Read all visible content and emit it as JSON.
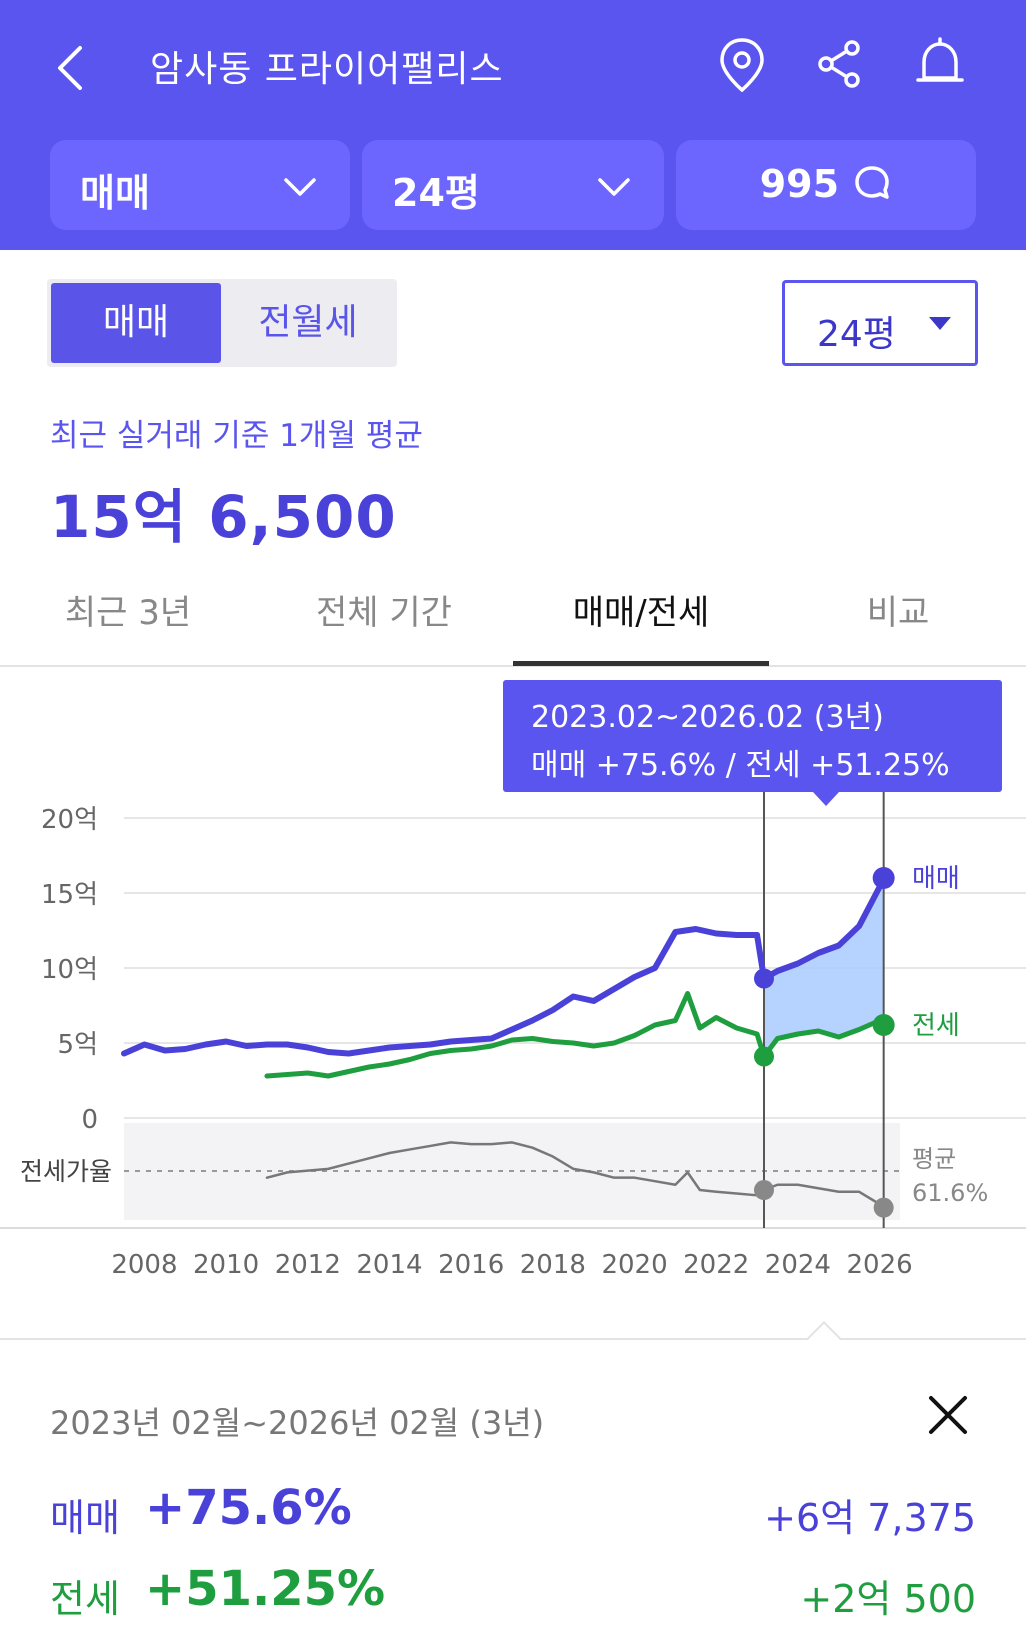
{
  "header": {
    "title": "암사동 프라이어팰리스",
    "filters": [
      {
        "label": "매매"
      },
      {
        "label": "24평"
      },
      {
        "label": "995"
      }
    ]
  },
  "segment": {
    "options": [
      "매매",
      "전월세"
    ],
    "selected": "매매"
  },
  "area_select": {
    "label": "24평"
  },
  "summary_top": {
    "caption": "최근 실거래 기준 1개월 평균",
    "price": "15억 6,500"
  },
  "tabs": [
    {
      "label": "최근 3년"
    },
    {
      "label": "전체 기간"
    },
    {
      "label": "매매/전세",
      "active": true
    },
    {
      "label": "비교"
    }
  ],
  "tooltip": {
    "period": "2023.02~2026.02 (3년)",
    "changes": "매매 +75.6%  /  전세 +51.25%"
  },
  "chart_data": {
    "type": "line",
    "y_ticks": [
      "20억",
      "15억",
      "10억",
      "5억",
      "0"
    ],
    "x_ticks": [
      "2008",
      "2010",
      "2012",
      "2014",
      "2016",
      "2018",
      "2020",
      "2022",
      "2024",
      "2026"
    ],
    "ylim": [
      0,
      20
    ],
    "xlim": [
      2007.5,
      2026.5
    ],
    "ratio_label": "전세가율",
    "avg_label": "평균",
    "avg_value": "61.6%",
    "highlight": {
      "start": 2023.17,
      "end": 2026.1
    },
    "colors": {
      "sale": "#4a42d8",
      "jeonse": "#1f9e3f",
      "ratio": "#777777",
      "band": "#a9cbff"
    },
    "series": [
      {
        "name": "매매",
        "x": [
          2007.5,
          2008.0,
          2008.5,
          2009.0,
          2009.5,
          2010.0,
          2010.5,
          2011.0,
          2011.5,
          2012.0,
          2012.5,
          2013.0,
          2013.5,
          2014.0,
          2014.5,
          2015.0,
          2015.5,
          2016.0,
          2016.5,
          2017.0,
          2017.5,
          2018.0,
          2018.5,
          2019.0,
          2019.5,
          2020.0,
          2020.5,
          2021.0,
          2021.5,
          2022.0,
          2022.5,
          2023.0,
          2023.17,
          2023.5,
          2024.0,
          2024.5,
          2025.0,
          2025.5,
          2026.0,
          2026.1
        ],
        "values": [
          4.3,
          4.9,
          4.5,
          4.6,
          4.9,
          5.1,
          4.8,
          4.9,
          4.9,
          4.7,
          4.4,
          4.3,
          4.5,
          4.7,
          4.8,
          4.9,
          5.1,
          5.2,
          5.3,
          5.9,
          6.5,
          7.2,
          8.1,
          7.8,
          8.6,
          9.4,
          10.0,
          12.4,
          12.6,
          12.3,
          12.2,
          12.2,
          9.3,
          9.8,
          10.3,
          11.0,
          11.5,
          12.8,
          15.4,
          16.0
        ]
      },
      {
        "name": "전세",
        "x": [
          2011.0,
          2011.5,
          2012.0,
          2012.5,
          2013.0,
          2013.5,
          2014.0,
          2014.5,
          2015.0,
          2015.5,
          2016.0,
          2016.5,
          2017.0,
          2017.5,
          2018.0,
          2018.5,
          2019.0,
          2019.5,
          2020.0,
          2020.5,
          2021.0,
          2021.3,
          2021.6,
          2022.0,
          2022.5,
          2023.0,
          2023.17,
          2023.5,
          2024.0,
          2024.5,
          2025.0,
          2025.5,
          2026.0,
          2026.1
        ],
        "values": [
          2.8,
          2.9,
          3.0,
          2.8,
          3.1,
          3.4,
          3.6,
          3.9,
          4.3,
          4.5,
          4.6,
          4.8,
          5.2,
          5.3,
          5.1,
          5.0,
          4.8,
          5.0,
          5.5,
          6.2,
          6.5,
          8.3,
          6.0,
          6.7,
          6.0,
          5.6,
          4.1,
          5.3,
          5.6,
          5.8,
          5.4,
          5.9,
          6.5,
          6.2
        ]
      },
      {
        "name": "전세가율",
        "x": [
          2011.0,
          2011.5,
          2012.0,
          2012.5,
          2013.0,
          2013.5,
          2014.0,
          2014.5,
          2015.0,
          2015.5,
          2016.0,
          2016.5,
          2017.0,
          2017.5,
          2018.0,
          2018.5,
          2019.0,
          2019.5,
          2020.0,
          2020.5,
          2021.0,
          2021.3,
          2021.6,
          2022.0,
          2022.5,
          2023.0,
          2023.17,
          2023.5,
          2024.0,
          2024.5,
          2025.0,
          2025.5,
          2026.0,
          2026.1
        ],
        "values": [
          59,
          62,
          63,
          64,
          67,
          70,
          73,
          75,
          77,
          79,
          78,
          78,
          79,
          76,
          71,
          64,
          62,
          59,
          59,
          57,
          55,
          62,
          52,
          51,
          50,
          49,
          52,
          55,
          55,
          53,
          51,
          51,
          44,
          42
        ]
      }
    ]
  },
  "summary": {
    "period": "2023년 02월~2026년 02월 (3년)",
    "rows": [
      {
        "label": "매매",
        "pct": "+75.6%",
        "amount": "+6억 7,375"
      },
      {
        "label": "전세",
        "pct": "+51.25%",
        "amount": "+2억 500"
      }
    ]
  }
}
